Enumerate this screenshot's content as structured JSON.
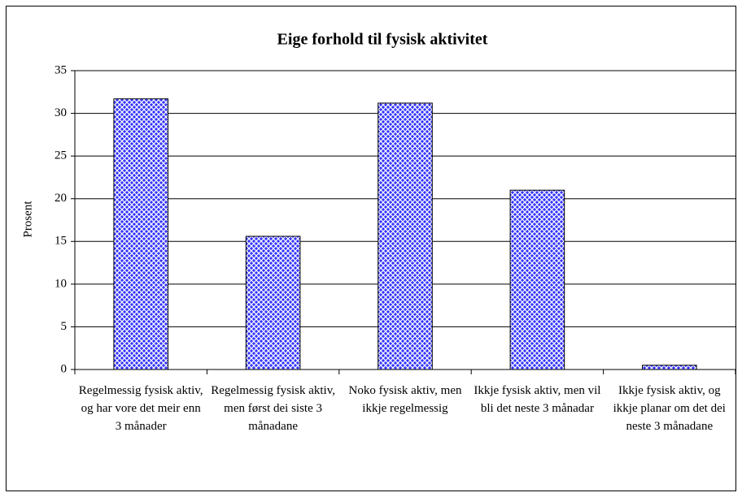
{
  "chart_data": {
    "type": "bar",
    "title": "Eige forhold til fysisk aktivitet",
    "y_label": "Prosent",
    "categories": [
      "Regelmessig fysisk aktiv, og har vore det meir enn 3 månader",
      "Regelmessig fysisk aktiv, men først dei siste 3 månadane",
      "Noko fysisk aktiv, men ikkje regelmessig",
      "Ikkje fysisk aktiv, men vil bli det neste 3 månadar",
      "Ikkje fysisk aktiv, og ikkje planar om det dei neste 3 månadane"
    ],
    "values": [
      31.7,
      15.6,
      31.2,
      21.0,
      0.5
    ],
    "color": "#3333ff",
    "ylim": [
      0,
      35
    ],
    "yticks": [
      0,
      5,
      10,
      15,
      20,
      25,
      30,
      35
    ],
    "grid": true
  }
}
